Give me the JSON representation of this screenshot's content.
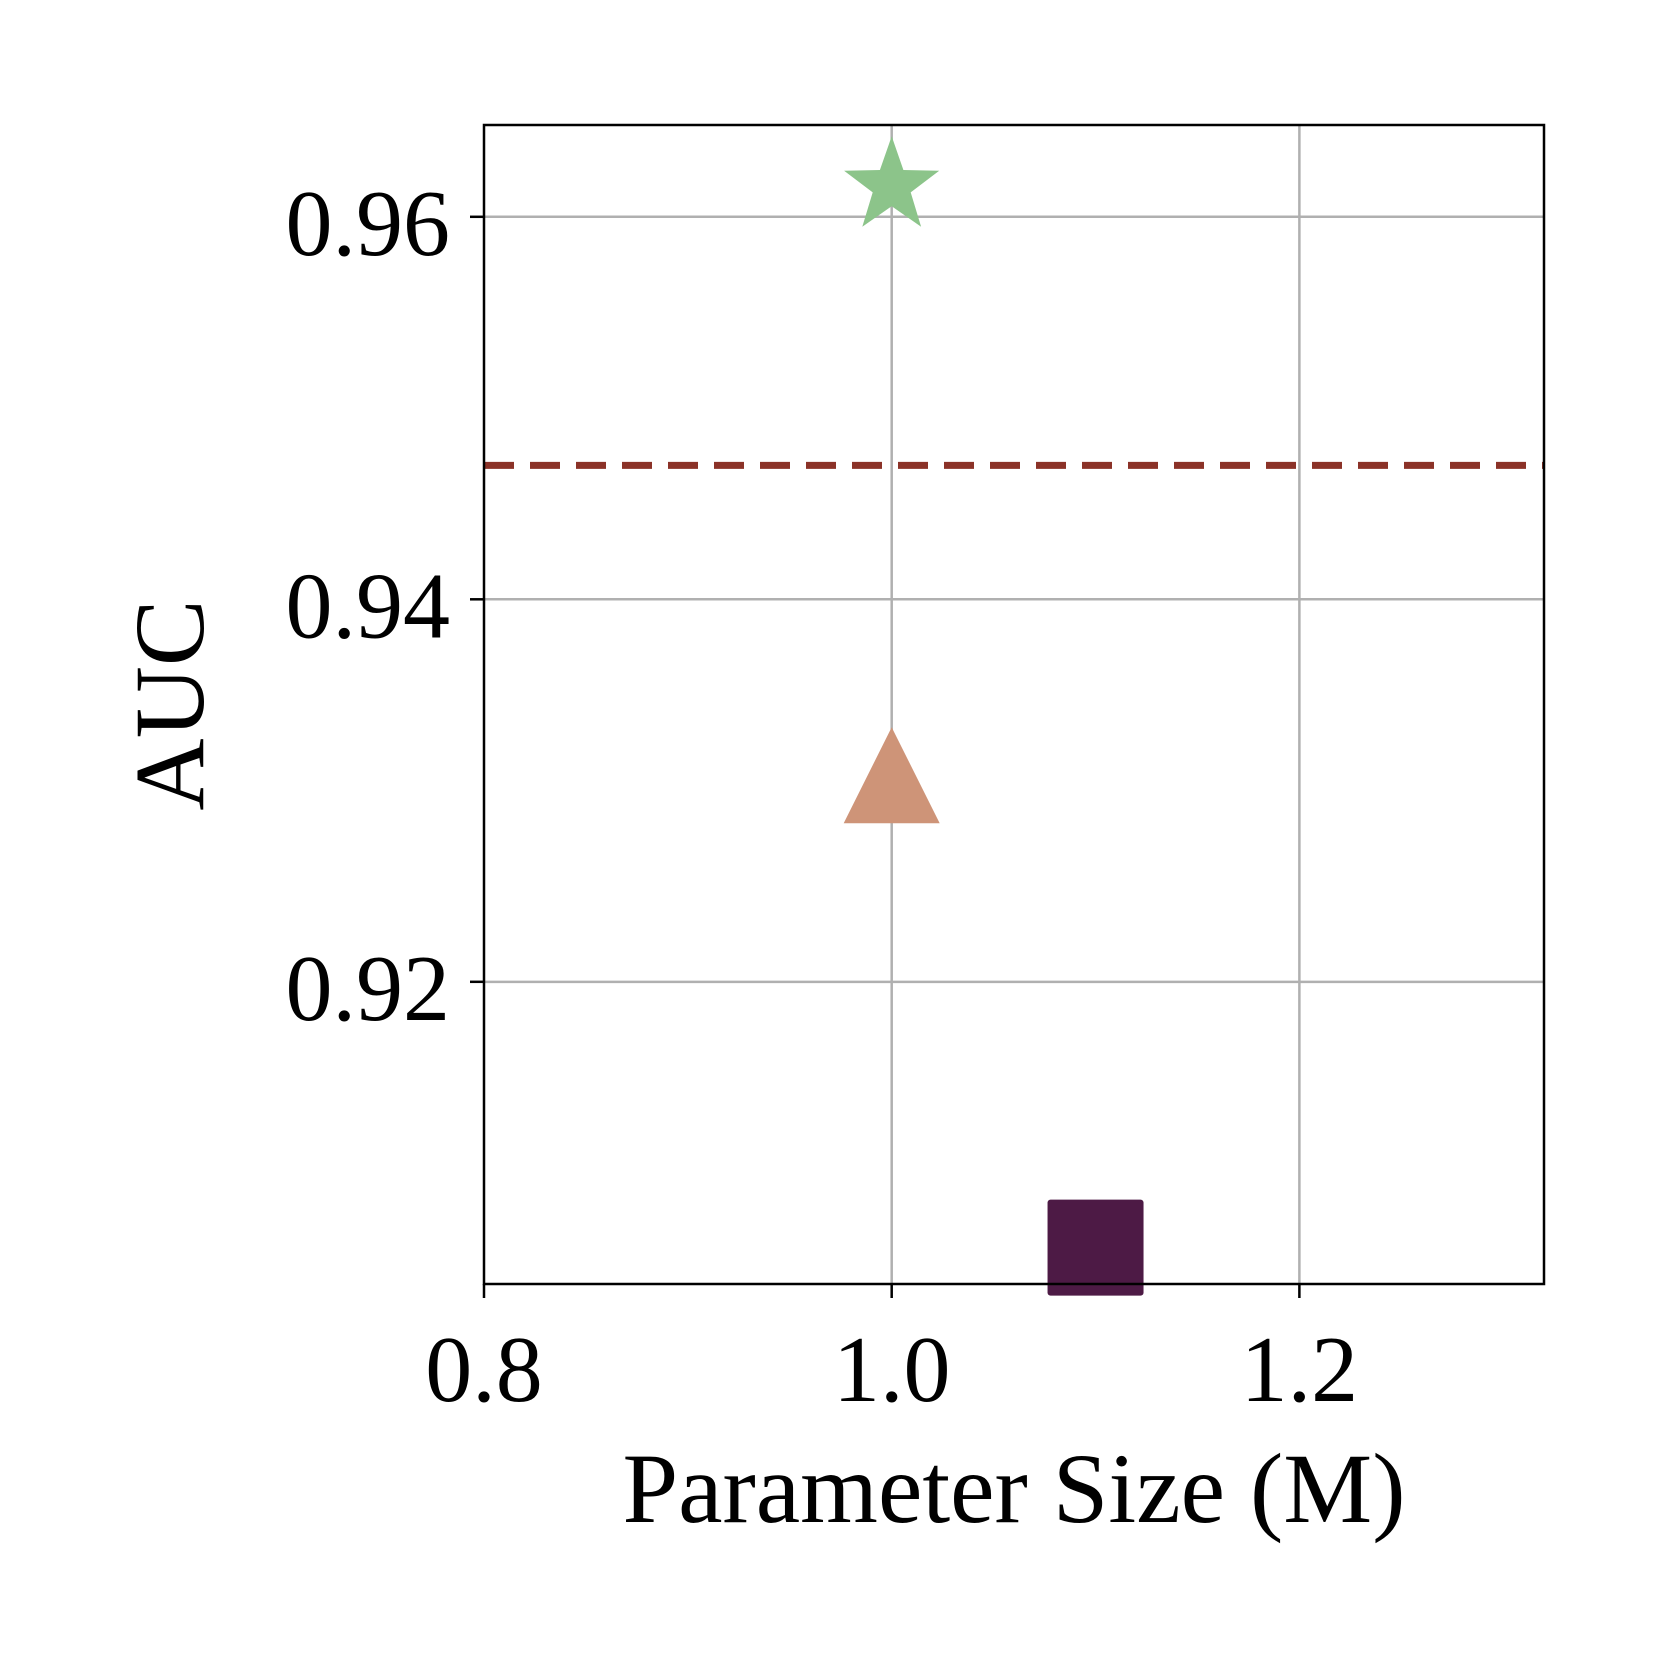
{
  "chart_data": {
    "type": "scatter",
    "xlabel": "Parameter Size (M)",
    "ylabel": "AUC",
    "xlim": [
      0.8,
      1.32
    ],
    "ylim": [
      0.9042,
      0.9648
    ],
    "xticks": [
      0.8,
      1.0,
      1.2
    ],
    "xtick_labels": [
      "0.8",
      "1.0",
      "1.2"
    ],
    "yticks": [
      0.92,
      0.94,
      0.96
    ],
    "ytick_labels": [
      "0.92",
      "0.94",
      "0.96"
    ],
    "grid": true,
    "points": [
      {
        "marker": "star",
        "x": 1.0,
        "y": 0.9616,
        "color": "#8CC48A"
      },
      {
        "marker": "triangle",
        "x": 1.0,
        "y": 0.9308,
        "color": "#CE9478"
      },
      {
        "marker": "square",
        "x": 1.1,
        "y": 0.9061,
        "color": "#4D1A45"
      }
    ],
    "reference_line": {
      "y": 0.947,
      "style": "dashed",
      "color": "#8B3228"
    }
  }
}
